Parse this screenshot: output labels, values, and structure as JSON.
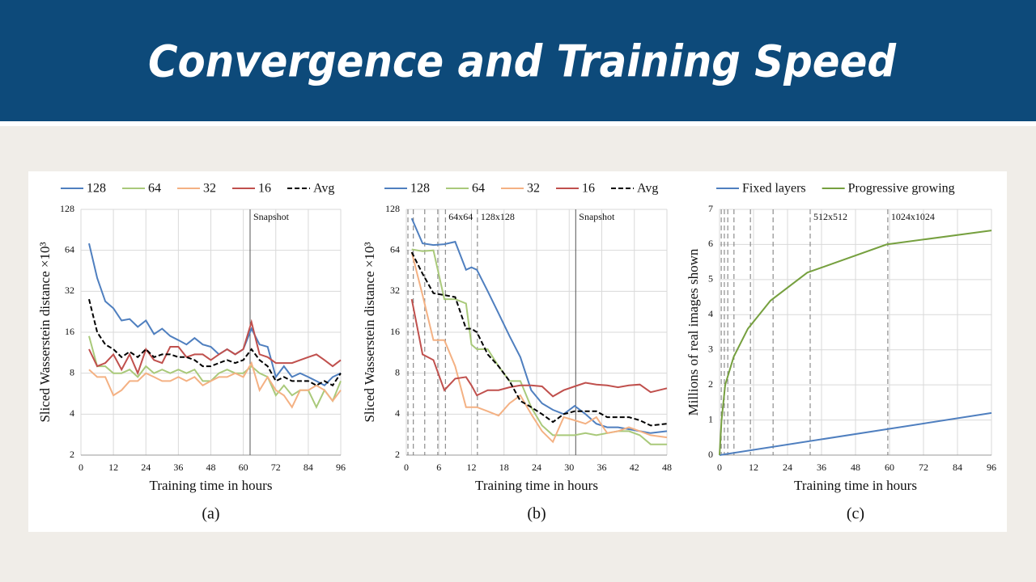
{
  "title": "Convergence and Training Speed",
  "chart_data": [
    {
      "type": "line",
      "caption": "(a)",
      "xlabel": "Training time in hours",
      "ylabel": "Sliced Wasserstein distance ×10³",
      "yscale": "log",
      "grid": true,
      "legend": "top",
      "xlim": [
        0,
        96
      ],
      "xticks": [
        0,
        12,
        24,
        36,
        48,
        60,
        72,
        84,
        96
      ],
      "ylim": [
        2,
        128
      ],
      "yticks": [
        2,
        4,
        8,
        16,
        32,
        64,
        128
      ],
      "x": [
        3,
        6,
        9,
        12,
        15,
        18,
        21,
        24,
        27,
        30,
        33,
        36,
        39,
        42,
        45,
        48,
        51,
        54,
        57,
        60,
        63,
        66,
        69,
        72,
        75,
        78,
        81,
        84,
        87,
        90,
        93,
        96
      ],
      "series": [
        {
          "name": "128",
          "color": "#4f7fbf",
          "values": [
            72,
            40,
            27,
            24,
            19.5,
            20,
            17.5,
            19.5,
            15.5,
            17,
            15,
            14,
            13,
            14.5,
            13,
            12.5,
            11,
            12,
            11,
            12,
            17,
            13,
            12.5,
            7.5,
            9,
            7.5,
            8,
            7.5,
            7,
            6.5,
            7.5,
            8
          ]
        },
        {
          "name": "64",
          "color": "#a9c97a",
          "values": [
            15,
            9,
            9,
            8,
            8,
            8.5,
            7.5,
            9,
            8,
            8.5,
            8,
            8.5,
            8,
            8.5,
            7,
            7,
            8,
            8.5,
            8,
            8,
            9,
            8,
            7.5,
            5.5,
            6.5,
            5.5,
            6,
            6,
            4.5,
            6,
            5,
            7
          ]
        },
        {
          "name": "32",
          "color": "#f4b183",
          "values": [
            8.5,
            7.5,
            7.5,
            5.5,
            6,
            7,
            7,
            8,
            7.5,
            7,
            7,
            7.5,
            7,
            7.5,
            6.5,
            7,
            7.5,
            7.5,
            8,
            7.5,
            9.5,
            6,
            7.5,
            6,
            5.5,
            4.5,
            6,
            6,
            6.5,
            6,
            5,
            6
          ]
        },
        {
          "name": "16",
          "color": "#c0504d",
          "values": [
            12,
            9,
            9.5,
            11,
            8.5,
            11,
            8,
            12,
            10,
            9.5,
            12.5,
            12.5,
            10.5,
            11,
            11,
            10,
            11,
            12,
            11,
            12,
            19,
            11,
            10.5,
            9.5,
            9.5,
            9.5,
            10,
            10.5,
            11,
            10,
            9,
            10
          ]
        },
        {
          "name": "Avg",
          "color": "#000000",
          "dash": true,
          "values": [
            28,
            16,
            13,
            12,
            10.5,
            11.5,
            10.5,
            12,
            10.5,
            11,
            11,
            10.5,
            10.5,
            10,
            9,
            9,
            9.5,
            10,
            9.5,
            10,
            12,
            10,
            9,
            7,
            7.5,
            7,
            7,
            7,
            6.5,
            7,
            6.5,
            8
          ]
        }
      ],
      "vlines": [
        {
          "x": 62.5,
          "label": "Snapshot",
          "style": "solid"
        }
      ]
    },
    {
      "type": "line",
      "caption": "(b)",
      "xlabel": "Training time in hours",
      "ylabel": "Sliced Wasserstein distance ×10³",
      "yscale": "log",
      "grid": true,
      "legend": "top",
      "xlim": [
        0,
        48
      ],
      "xticks": [
        0,
        6,
        12,
        18,
        24,
        30,
        36,
        42,
        48
      ],
      "ylim": [
        2,
        128
      ],
      "yticks": [
        2,
        4,
        8,
        16,
        32,
        64,
        128
      ],
      "x": [
        1,
        3,
        5,
        7,
        9,
        11,
        12,
        13,
        15,
        17,
        19,
        21,
        23,
        25,
        27,
        29,
        31,
        33,
        35,
        37,
        39,
        41,
        43,
        45,
        48
      ],
      "series": [
        {
          "name": "128",
          "color": "#4f7fbf",
          "values": [
            110,
            72,
            70,
            71,
            74,
            46,
            48,
            46,
            32,
            22,
            15,
            10.5,
            6,
            4.8,
            4.3,
            4,
            4.6,
            4,
            3.4,
            3.2,
            3.2,
            3.1,
            3,
            2.9,
            3
          ]
        },
        {
          "name": "64",
          "color": "#a9c97a",
          "values": [
            65,
            63,
            64,
            28,
            28,
            26,
            13,
            12,
            12,
            9,
            7,
            7,
            4.5,
            3.3,
            2.8,
            2.8,
            2.8,
            2.9,
            2.8,
            2.9,
            3,
            3,
            2.8,
            2.4,
            2.4
          ]
        },
        {
          "name": "32",
          "color": "#f4b183",
          "values": [
            62,
            30,
            14,
            14,
            9,
            4.5,
            4.5,
            4.5,
            4.2,
            3.9,
            4.8,
            5.5,
            4,
            3,
            2.5,
            3.8,
            3.6,
            3.4,
            3.8,
            2.9,
            3,
            3.2,
            3,
            2.8,
            2.7
          ]
        },
        {
          "name": "16",
          "color": "#c0504d",
          "values": [
            28,
            11,
            10,
            6,
            7.3,
            7.5,
            6.5,
            5.5,
            6,
            6,
            6.3,
            6.5,
            6.5,
            6.4,
            5.4,
            6,
            6.4,
            6.8,
            6.6,
            6.5,
            6.3,
            6.5,
            6.6,
            5.8,
            6.2
          ]
        },
        {
          "name": "Avg",
          "color": "#000000",
          "dash": true,
          "values": [
            62,
            43,
            31,
            30,
            29,
            17,
            17,
            16,
            11,
            9,
            7,
            5,
            4.5,
            4,
            3.5,
            4,
            4.2,
            4.2,
            4.2,
            3.8,
            3.8,
            3.8,
            3.6,
            3.3,
            3.4
          ]
        }
      ],
      "vlines": [
        {
          "x": 0.3,
          "style": "dashed"
        },
        {
          "x": 1.3,
          "style": "dashed"
        },
        {
          "x": 3.4,
          "style": "dashed"
        },
        {
          "x": 5.8,
          "style": "dashed"
        },
        {
          "x": 7.2,
          "label": "64x64",
          "style": "dashed"
        },
        {
          "x": 13.1,
          "label": "128x128",
          "style": "dashed"
        },
        {
          "x": 31.2,
          "label": "Snapshot",
          "style": "solid"
        }
      ]
    },
    {
      "type": "line",
      "caption": "(c)",
      "xlabel": "Training time in hours",
      "ylabel": "Millions of real images shown",
      "yscale": "linear",
      "grid": true,
      "legend": "top",
      "xlim": [
        0,
        96
      ],
      "xticks": [
        0,
        12,
        24,
        36,
        48,
        60,
        72,
        84,
        96
      ],
      "ylim": [
        0,
        7
      ],
      "yticks": [
        0,
        1,
        2,
        3,
        4,
        5,
        6,
        7
      ],
      "series": [
        {
          "name": "Fixed layers",
          "color": "#4f7fbf",
          "x": [
            0,
            96
          ],
          "values": [
            0,
            1.2
          ]
        },
        {
          "name": "Progressive growing",
          "color": "#76a03f",
          "x": [
            0,
            0.7,
            2,
            5,
            10,
            18,
            31,
            59,
            96
          ],
          "values": [
            0,
            1,
            2,
            2.8,
            3.6,
            4.4,
            5.2,
            6,
            6.4
          ]
        }
      ],
      "vlines": [
        {
          "x": 0.6,
          "style": "dashed"
        },
        {
          "x": 1.7,
          "style": "dashed"
        },
        {
          "x": 2.9,
          "style": "dashed"
        },
        {
          "x": 5.1,
          "style": "dashed"
        },
        {
          "x": 10.9,
          "style": "dashed"
        },
        {
          "x": 18.9,
          "style": "dashed"
        },
        {
          "x": 32,
          "label": "512x512",
          "style": "dashed"
        },
        {
          "x": 59.4,
          "label": "1024x1024",
          "style": "dashed"
        }
      ]
    }
  ]
}
